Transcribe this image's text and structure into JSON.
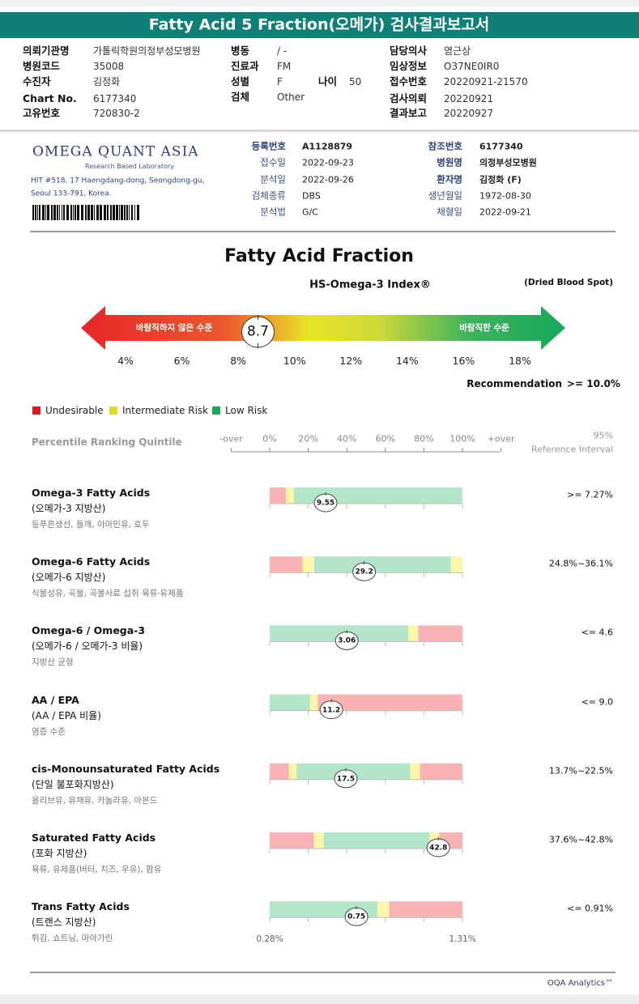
{
  "header": {
    "title": "Fatty Acid 5 Fraction(오메가) 검사결과보고서"
  },
  "patient_info": [
    {
      "label": "의뢰기관명",
      "value": "가톨릭학원의정부성모병원"
    },
    {
      "label": "병원코드",
      "value": "35008"
    },
    {
      "label": "수진자",
      "value": "김정화"
    },
    {
      "label": "Chart No.",
      "value": "6177340"
    },
    {
      "label": "고유번호",
      "value": "720830-2"
    },
    {
      "label": "병동",
      "value": "/ -"
    },
    {
      "label": "진료과",
      "value": "FM"
    },
    {
      "label": "성별",
      "value": "F"
    },
    {
      "label": "나이",
      "value": "50"
    },
    {
      "label": "검체",
      "value": "Other"
    },
    {
      "label": "담당의사",
      "value": "염근상"
    },
    {
      "label": "임상정보",
      "value": "O37NE0IR0"
    },
    {
      "label": "접수번호",
      "value": "20220921-21570"
    },
    {
      "label": "검사의뢰",
      "value": "20220921"
    },
    {
      "label": "결과보고",
      "value": "20220927"
    }
  ],
  "lab": {
    "name": "OMEGA QUANT ASIA",
    "tagline": "Research Based Laboratory",
    "address": [
      "HIT #518, 17 Haengdang-dong, Seongdong-gu,",
      "Seoul 133-791, Korea."
    ],
    "fields": [
      {
        "label": "등록번호",
        "value": "A1128879"
      },
      {
        "label": "접수일",
        "value": "2022-09-23"
      },
      {
        "label": "분석일",
        "value": "2022-09-26"
      },
      {
        "label": "검체종류",
        "value": "DBS"
      },
      {
        "label": "분석법",
        "value": "G/C"
      },
      {
        "label": "참조번호",
        "value": "6177340"
      },
      {
        "label": "병원명",
        "value": "의정부성모병원"
      },
      {
        "label": "환자명",
        "value": "김정화 (F)"
      },
      {
        "label": "생년월일",
        "value": "1972-08-30"
      },
      {
        "label": "채혈일",
        "value": "2022-09-21"
      }
    ]
  },
  "index_chart": {
    "title": "Fatty Acid Fraction",
    "subtitle": "HS-Omega-3 Index®",
    "note": "(Dried Blood Spot)",
    "left_label": "바람직하지 않은 수준",
    "right_label": "바람직한 수준",
    "value": 8.7,
    "xlim": [
      4,
      18
    ],
    "xticks": [
      {
        "value": 4,
        "label": "4%"
      },
      {
        "value": 6,
        "label": "6%"
      },
      {
        "value": 8,
        "label": "8%"
      },
      {
        "value": 10,
        "label": "10%"
      },
      {
        "value": 12,
        "label": "12%"
      },
      {
        "value": 14,
        "label": "14%"
      },
      {
        "value": 16,
        "label": "16%"
      },
      {
        "value": 18,
        "label": "18%"
      }
    ],
    "recommendation": {
      "label": "Recommendation",
      "value": ">= 10.0%"
    }
  },
  "legend": [
    {
      "label": "Undesirable",
      "color": "#e8141c",
      "zone_color": "#f9b3b5"
    },
    {
      "label": "Intermediate Risk",
      "color": "#dede1e",
      "zone_color": "#fbf6a8"
    },
    {
      "label": "Low Risk",
      "color": "#17a85a",
      "zone_color": "#b3e6c8"
    }
  ],
  "quintile": {
    "title": "Percentile Ranking Quintile",
    "ref_title": [
      "95%",
      "Reference Interval"
    ],
    "ticks": [
      {
        "value": -20,
        "label": "-over"
      },
      {
        "value": 0,
        "label": "0%"
      },
      {
        "value": 20,
        "label": "20%"
      },
      {
        "value": 40,
        "label": "40%"
      },
      {
        "value": 60,
        "label": "60%"
      },
      {
        "value": 80,
        "label": "80%"
      },
      {
        "value": 100,
        "label": "100%"
      },
      {
        "value": 120,
        "label": "+over"
      }
    ]
  },
  "items": [
    {
      "name": "Omega-3 Fatty Acids",
      "korean": "(오메가-3 지방산)",
      "foods": "등푸른생선, 들깨, 아마인유, 호두",
      "value": "9.55",
      "percentile": 29,
      "reference": ">= 7.27%",
      "zones": [
        {
          "risk": 0,
          "width": 8.5
        },
        {
          "risk": 1,
          "width": 4
        },
        {
          "risk": 2,
          "width": 87.5
        }
      ]
    },
    {
      "name": "Omega-6 Fatty Acids",
      "korean": "(오메가-6 지방산)",
      "foods": "식물성유, 곡물, 곡물사료 섭취 육류·유제품",
      "value": "29.2",
      "percentile": 49,
      "reference": "24.8%~36.1%",
      "zones": [
        {
          "risk": 0,
          "width": 17
        },
        {
          "risk": 1,
          "width": 6
        },
        {
          "risk": 2,
          "width": 71
        },
        {
          "risk": 1,
          "width": 6
        }
      ]
    },
    {
      "name": "Omega-6 / Omega-3",
      "korean": "(오메가-6 / 오메가-3 비율)",
      "foods": "지방산 균형",
      "value": "3.06",
      "percentile": 40,
      "reference": "<= 4.6",
      "zones": [
        {
          "risk": 2,
          "width": 72
        },
        {
          "risk": 1,
          "width": 5
        },
        {
          "risk": 0,
          "width": 23
        }
      ]
    },
    {
      "name": "AA / EPA",
      "korean": "(AA / EPA 비율)",
      "foods": "염증 수준",
      "value": "11.2",
      "percentile": 32,
      "reference": "<= 9.0",
      "zones": [
        {
          "risk": 2,
          "width": 21
        },
        {
          "risk": 1,
          "width": 4
        },
        {
          "risk": 0,
          "width": 75
        }
      ]
    },
    {
      "name": "cis-Monounsaturated Fatty Acids",
      "korean": "(단일 불포화지방산)",
      "foods": "올리브유, 유채유, 카놀라유, 아몬드",
      "value": "17.5",
      "percentile": 39.5,
      "reference": "13.7%~22.5%",
      "zones": [
        {
          "risk": 0,
          "width": 10
        },
        {
          "risk": 1,
          "width": 4
        },
        {
          "risk": 2,
          "width": 59
        },
        {
          "risk": 1,
          "width": 5
        },
        {
          "risk": 0,
          "width": 22
        }
      ]
    },
    {
      "name": "Saturated Fatty Acids",
      "korean": "(포화 지방산)",
      "foods": "육류, 유제품(버터, 치즈, 우유), 팜유",
      "value": "42.8",
      "percentile": 87.5,
      "reference": "37.6%~42.8%",
      "zones": [
        {
          "risk": 0,
          "width": 23
        },
        {
          "risk": 1,
          "width": 5
        },
        {
          "risk": 2,
          "width": 55
        },
        {
          "risk": 1,
          "width": 5
        },
        {
          "risk": 0,
          "width": 12
        }
      ]
    },
    {
      "name": "Trans Fatty Acids",
      "korean": "(트랜스 지방산)",
      "foods": "튀김, 쇼트닝, 마아가린",
      "value": "0.75",
      "percentile": 45,
      "reference": "<= 0.91%",
      "zones": [
        {
          "risk": 2,
          "width": 56
        },
        {
          "risk": 1,
          "width": 6
        },
        {
          "risk": 0,
          "width": 38
        }
      ],
      "scale_labels": [
        "0.28%",
        "1.31%"
      ]
    }
  ],
  "footer": "OQA Analytics™"
}
